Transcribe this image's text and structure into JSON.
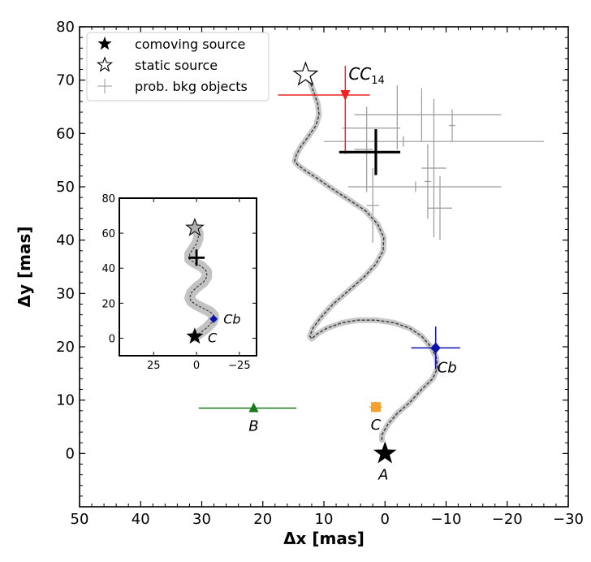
{
  "chart_data": [
    {
      "type": "scatter",
      "panel": "main",
      "xlabel": "Δx [mas]",
      "ylabel": "Δy [mas]",
      "xlim": [
        50,
        -30
      ],
      "ylim": [
        -10,
        80
      ],
      "xticks": [
        50,
        40,
        30,
        20,
        10,
        0,
        -10,
        -20,
        -30
      ],
      "yticks": [
        0,
        10,
        20,
        30,
        40,
        50,
        60,
        70,
        80
      ],
      "xtick_labels": [
        "50",
        "40",
        "30",
        "20",
        "10",
        "0",
        "−10",
        "−20",
        "−30"
      ],
      "ytick_labels": [
        "0",
        "10",
        "20",
        "30",
        "40",
        "50",
        "60",
        "70",
        "80"
      ],
      "grid": false,
      "legend_position": "top-left",
      "legend": [
        {
          "label": "comoving source",
          "marker": "filled-star"
        },
        {
          "label": "static source",
          "marker": "open-star"
        },
        {
          "label": "prob. bkg objects",
          "marker": "gray-plus"
        }
      ],
      "track": {
        "description_free": true,
        "color": "#555555",
        "points": [
          [
            0.5,
            2.5
          ],
          [
            0.5,
            3.5
          ],
          [
            -0.5,
            5.5
          ],
          [
            -2,
            7.5
          ],
          [
            -4,
            9.5
          ],
          [
            -6,
            12
          ],
          [
            -7.8,
            14
          ],
          [
            -8.6,
            16
          ],
          [
            -8.4,
            18
          ],
          [
            -7.5,
            20
          ],
          [
            -6,
            22
          ],
          [
            -4,
            23.5
          ],
          [
            -1.5,
            24.5
          ],
          [
            1.5,
            25
          ],
          [
            4.5,
            25
          ],
          [
            7,
            24.5
          ],
          [
            9.5,
            23.5
          ],
          [
            11,
            22.5
          ],
          [
            12,
            21.5
          ],
          [
            12.3,
            22
          ],
          [
            11.8,
            23.5
          ],
          [
            10.5,
            25.5
          ],
          [
            8.5,
            28
          ],
          [
            6,
            30.5
          ],
          [
            3.5,
            33
          ],
          [
            1.5,
            35.5
          ],
          [
            0.3,
            38
          ],
          [
            0.2,
            40.5
          ],
          [
            1.2,
            43
          ],
          [
            3.2,
            45.5
          ],
          [
            5.8,
            47.5
          ],
          [
            8.5,
            49.5
          ],
          [
            11,
            51.5
          ],
          [
            13,
            53
          ],
          [
            14.2,
            54
          ],
          [
            14.8,
            54.8
          ],
          [
            14.5,
            56
          ],
          [
            13.8,
            57.5
          ],
          [
            12.5,
            59.5
          ],
          [
            11.3,
            61.5
          ],
          [
            10.8,
            63.5
          ],
          [
            11,
            65.5
          ],
          [
            11.6,
            67.5
          ],
          [
            12.2,
            69.5
          ],
          [
            12.8,
            71
          ],
          [
            13.3,
            71.5
          ]
        ]
      },
      "comoving_source": {
        "label": "A",
        "x": 0,
        "y": 0,
        "color": "#000000"
      },
      "static_source": {
        "x": 13,
        "y": 71,
        "color": "#ffffff"
      },
      "candidates": [
        {
          "label": "B",
          "x": 21.5,
          "y": 8.5,
          "xerr": [
            9,
            7
          ],
          "yerr": [
            0.7,
            0.7
          ],
          "color": "#1a7a1a",
          "marker": "triangle"
        },
        {
          "label": "C",
          "x": 1.5,
          "y": 8.7,
          "xerr": [
            1,
            1
          ],
          "yerr": [
            1,
            1
          ],
          "color": "#f5a030",
          "marker": "square"
        },
        {
          "label": "Cb",
          "x": -8.3,
          "y": 19.8,
          "xerr": [
            4,
            4
          ],
          "yerr": [
            4,
            4
          ],
          "color": "#1010b0",
          "marker": "diamond"
        },
        {
          "label": "CC",
          "label_sub": "14",
          "x": 6.5,
          "y": 67.2,
          "xerr": [
            11,
            4
          ],
          "yerr": [
            11,
            5.5
          ],
          "color": "#ee2222",
          "marker": "triangle-down"
        }
      ],
      "background_objects": [
        {
          "x": -6,
          "y": 63.5,
          "xerr": [
            11,
            13
          ],
          "yerr": [
            5,
            5
          ]
        },
        {
          "x": -11,
          "y": 61.5,
          "xerr": [
            0.5,
            0.5
          ],
          "yerr": [
            3,
            3
          ]
        },
        {
          "x": -2,
          "y": 61,
          "xerr": [
            9,
            0.5
          ],
          "yerr": [
            4,
            8
          ]
        },
        {
          "x": -3,
          "y": 58.5,
          "xerr": [
            13,
            23
          ],
          "yerr": [
            1,
            1
          ]
        },
        {
          "x": 3,
          "y": 57,
          "xerr": [
            2,
            1
          ],
          "yerr": [
            8,
            8
          ]
        },
        {
          "x": 1.5,
          "y": 56.5,
          "xerr": [
            5,
            3
          ],
          "yerr": [
            4,
            4
          ]
        },
        {
          "x": -8,
          "y": 53.5,
          "xerr": [
            2,
            2
          ],
          "yerr": [
            13,
            13
          ]
        },
        {
          "x": -7,
          "y": 51,
          "xerr": [
            0.5,
            0.5
          ],
          "yerr": [
            7,
            7
          ]
        },
        {
          "x": -5,
          "y": 50,
          "xerr": [
            11,
            14
          ],
          "yerr": [
            1,
            1
          ]
        },
        {
          "x": 2,
          "y": 46.5,
          "xerr": [
            1,
            1
          ],
          "yerr": [
            7,
            7
          ]
        },
        {
          "x": -9,
          "y": 46,
          "xerr": [
            2,
            2
          ],
          "yerr": [
            6,
            6
          ]
        }
      ],
      "mean_bkg": {
        "x": 1.5,
        "y": 56.5,
        "xerr": [
          6,
          4
        ],
        "yerr": [
          4.3,
          4.3
        ],
        "color": "#000000"
      }
    },
    {
      "type": "scatter",
      "panel": "inset",
      "xlim": [
        45,
        -35
      ],
      "ylim": [
        -10,
        80
      ],
      "xticks": [
        25,
        0,
        -25
      ],
      "yticks": [
        0,
        20,
        40,
        60,
        80
      ],
      "xtick_labels": [
        "25",
        "0",
        "−25"
      ],
      "ytick_labels": [
        "0",
        "20",
        "40",
        "60",
        "80"
      ],
      "comoving_source": {
        "label": "C",
        "x": 1,
        "y": 1
      },
      "static_source": {
        "x": 1,
        "y": 63
      },
      "plus_marker": {
        "x": 0,
        "y": 46
      },
      "candidate": {
        "label": "Cb",
        "x": -10,
        "y": 11,
        "color": "#1010b0"
      },
      "track": {
        "points": [
          [
            1,
            1
          ],
          [
            -2,
            3
          ],
          [
            -6,
            6
          ],
          [
            -9,
            9
          ],
          [
            -10,
            11
          ],
          [
            -10,
            13
          ],
          [
            -8,
            15
          ],
          [
            -4,
            17
          ],
          [
            0,
            19
          ],
          [
            3,
            21
          ],
          [
            4,
            23
          ],
          [
            3,
            26
          ],
          [
            0,
            29
          ],
          [
            -4,
            32
          ],
          [
            -6,
            35
          ],
          [
            -6,
            38
          ],
          [
            -3,
            41
          ],
          [
            1,
            43
          ],
          [
            4,
            45
          ],
          [
            4,
            48
          ],
          [
            2,
            51
          ],
          [
            0,
            54
          ],
          [
            -1,
            57
          ],
          [
            -1,
            60
          ],
          [
            0,
            62
          ],
          [
            1,
            63
          ]
        ]
      }
    }
  ]
}
